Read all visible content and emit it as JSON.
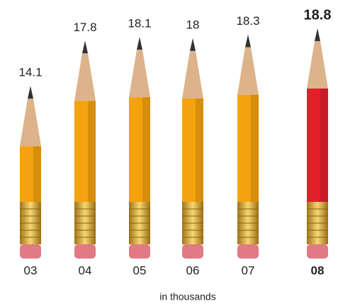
{
  "chart_data": {
    "type": "pictograph",
    "categories": [
      "03",
      "04",
      "05",
      "06",
      "07",
      "08"
    ],
    "values": [
      14.1,
      17.8,
      18.1,
      18.0,
      18.3,
      18.8
    ],
    "colors": [
      "#f4a20e",
      "#f4a20e",
      "#f4a20e",
      "#f4a20e",
      "#f4a20e",
      "#e3202a"
    ],
    "bold": [
      false,
      false,
      false,
      false,
      false,
      true
    ],
    "x_label": "in thousands"
  }
}
